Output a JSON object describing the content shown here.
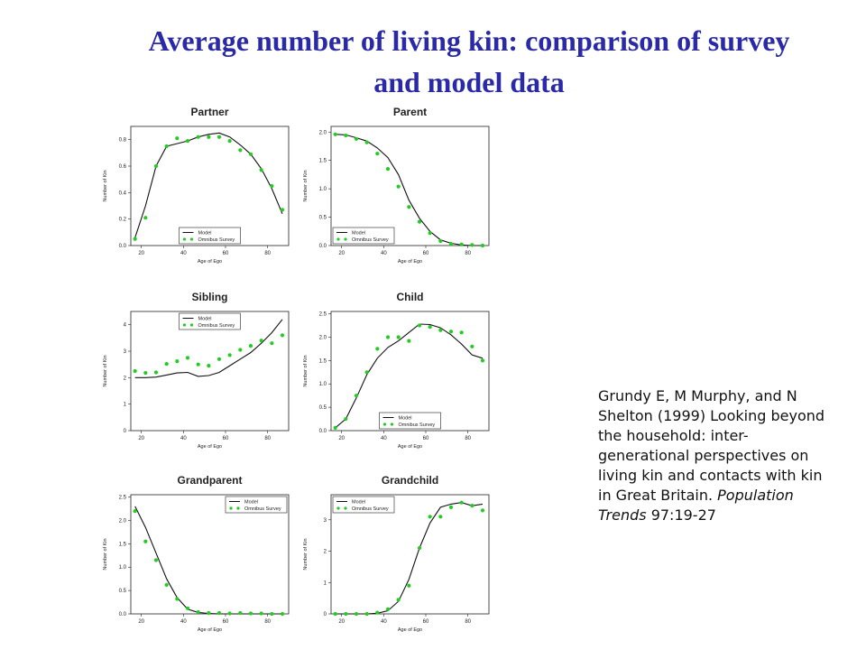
{
  "slide": {
    "title_line1": "Average number of living kin: comparison of survey",
    "title_line2": "and model data"
  },
  "citation": {
    "authors": "Grundy E, M Murphy, and N Shelton (1999)",
    "article": "Looking beyond the household: inter-generational perspectives on living kin and contacts with kin in Great Britain.",
    "journal": "Population Trends",
    "issue": "97:19-27"
  },
  "colors": {
    "title": "#2a2aa8",
    "model": "#111111",
    "survey": "#22cc22"
  },
  "chart_data": [
    {
      "type": "line",
      "title": "Partner",
      "xlabel": "Age of Ego",
      "ylabel": "Number of Kin",
      "xlim": [
        15,
        90
      ],
      "ylim": [
        0,
        0.9
      ],
      "xticks": [
        20,
        40,
        60,
        80
      ],
      "yticks": [
        0.0,
        0.2,
        0.4,
        0.6,
        0.8
      ],
      "ytick_labels": [
        "0.0",
        "0.2",
        "0.4",
        "0.6",
        "0.8"
      ],
      "legend": {
        "position": "bottom-center",
        "entries": [
          "Model",
          "Omnibus Survey"
        ]
      },
      "series": [
        {
          "name": "Model",
          "style": "line",
          "x": [
            17,
            22,
            27,
            32,
            37,
            42,
            47,
            52,
            57,
            62,
            67,
            72,
            77,
            82,
            87
          ],
          "y": [
            0.06,
            0.3,
            0.6,
            0.75,
            0.77,
            0.79,
            0.82,
            0.84,
            0.85,
            0.82,
            0.76,
            0.69,
            0.58,
            0.43,
            0.24
          ]
        },
        {
          "name": "Omnibus Survey",
          "style": "points",
          "x": [
            17,
            22,
            27,
            32,
            37,
            42,
            47,
            52,
            57,
            62,
            67,
            72,
            77,
            82,
            87
          ],
          "y": [
            0.05,
            0.21,
            0.6,
            0.75,
            0.81,
            0.79,
            0.82,
            0.82,
            0.82,
            0.79,
            0.72,
            0.69,
            0.57,
            0.45,
            0.27
          ]
        }
      ]
    },
    {
      "type": "line",
      "title": "Parent",
      "xlabel": "Age of Ego",
      "ylabel": "Number of Kin",
      "xlim": [
        15,
        90
      ],
      "ylim": [
        0,
        2.1
      ],
      "xticks": [
        20,
        40,
        60,
        80
      ],
      "yticks": [
        0.0,
        0.5,
        1.0,
        1.5,
        2.0
      ],
      "ytick_labels": [
        "0.0",
        "0.5",
        "1.0",
        "1.5",
        "2.0"
      ],
      "legend": {
        "position": "bottom-left",
        "entries": [
          "Model",
          "Omnibus Survey"
        ]
      },
      "series": [
        {
          "name": "Model",
          "style": "line",
          "x": [
            17,
            22,
            27,
            32,
            37,
            42,
            47,
            52,
            57,
            62,
            67,
            72,
            77,
            82,
            87
          ],
          "y": [
            1.96,
            1.95,
            1.9,
            1.84,
            1.72,
            1.55,
            1.25,
            0.8,
            0.48,
            0.25,
            0.1,
            0.04,
            0.01,
            0.0,
            0.0
          ]
        },
        {
          "name": "Omnibus Survey",
          "style": "points",
          "x": [
            17,
            22,
            27,
            32,
            37,
            42,
            47,
            52,
            57,
            62,
            67,
            72,
            77,
            82,
            87
          ],
          "y": [
            1.96,
            1.94,
            1.88,
            1.82,
            1.62,
            1.35,
            1.04,
            0.68,
            0.42,
            0.22,
            0.08,
            0.03,
            0.02,
            0.01,
            0.0
          ]
        }
      ]
    },
    {
      "type": "line",
      "title": "Sibling",
      "xlabel": "Age of Ego",
      "ylabel": "Number of Kin",
      "xlim": [
        15,
        90
      ],
      "ylim": [
        0,
        4.5
      ],
      "xticks": [
        20,
        40,
        60,
        80
      ],
      "yticks": [
        0,
        1,
        2,
        3,
        4
      ],
      "ytick_labels": [
        "0",
        "1",
        "2",
        "3",
        "4"
      ],
      "legend": {
        "position": "top-center",
        "entries": [
          "Model",
          "Omnibus Survey"
        ]
      },
      "series": [
        {
          "name": "Model",
          "style": "line",
          "x": [
            17,
            22,
            27,
            32,
            37,
            42,
            47,
            52,
            57,
            62,
            67,
            72,
            77,
            82,
            87
          ],
          "y": [
            2.0,
            2.0,
            2.02,
            2.1,
            2.18,
            2.2,
            2.05,
            2.08,
            2.2,
            2.45,
            2.7,
            2.95,
            3.3,
            3.7,
            4.2
          ]
        },
        {
          "name": "Omnibus Survey",
          "style": "points",
          "x": [
            17,
            22,
            27,
            32,
            37,
            42,
            47,
            52,
            57,
            62,
            67,
            72,
            77,
            82,
            87
          ],
          "y": [
            2.25,
            2.18,
            2.2,
            2.52,
            2.62,
            2.75,
            2.5,
            2.45,
            2.7,
            2.85,
            3.05,
            3.2,
            3.4,
            3.3,
            3.6
          ]
        }
      ]
    },
    {
      "type": "line",
      "title": "Child",
      "xlabel": "Age of Ego",
      "ylabel": "Number of Kin",
      "xlim": [
        15,
        90
      ],
      "ylim": [
        0,
        2.55
      ],
      "xticks": [
        20,
        40,
        60,
        80
      ],
      "yticks": [
        0.0,
        0.5,
        1.0,
        1.5,
        2.0,
        2.5
      ],
      "ytick_labels": [
        "0.0",
        "0.5",
        "1.0",
        "1.5",
        "2.0",
        "2.5"
      ],
      "legend": {
        "position": "bottom-center",
        "entries": [
          "Model",
          "Omnibus Survey"
        ]
      },
      "series": [
        {
          "name": "Model",
          "style": "line",
          "x": [
            17,
            22,
            27,
            32,
            37,
            42,
            47,
            52,
            57,
            62,
            67,
            72,
            77,
            82,
            87
          ],
          "y": [
            0.06,
            0.25,
            0.7,
            1.2,
            1.55,
            1.78,
            1.92,
            2.1,
            2.28,
            2.27,
            2.2,
            2.05,
            1.85,
            1.62,
            1.55
          ]
        },
        {
          "name": "Omnibus Survey",
          "style": "points",
          "x": [
            17,
            22,
            27,
            32,
            37,
            42,
            47,
            52,
            57,
            62,
            67,
            72,
            77,
            82,
            87
          ],
          "y": [
            0.06,
            0.25,
            0.75,
            1.25,
            1.75,
            2.0,
            2.0,
            1.92,
            2.25,
            2.22,
            2.15,
            2.12,
            2.1,
            1.8,
            1.5
          ]
        }
      ]
    },
    {
      "type": "line",
      "title": "Grandparent",
      "xlabel": "Age of Ego",
      "ylabel": "Number of Kin",
      "xlim": [
        15,
        90
      ],
      "ylim": [
        0,
        2.55
      ],
      "xticks": [
        20,
        40,
        60,
        80
      ],
      "yticks": [
        0.0,
        0.5,
        1.0,
        1.5,
        2.0,
        2.5
      ],
      "ytick_labels": [
        "0.0",
        "0.5",
        "1.0",
        "1.5",
        "2.0",
        "2.5"
      ],
      "legend": {
        "position": "top-right",
        "entries": [
          "Model",
          "Omnibus Survey"
        ]
      },
      "series": [
        {
          "name": "Model",
          "style": "line",
          "x": [
            17,
            22,
            27,
            32,
            37,
            42,
            47,
            52,
            57,
            62,
            67,
            72,
            77,
            82,
            87
          ],
          "y": [
            2.3,
            1.85,
            1.3,
            0.75,
            0.35,
            0.1,
            0.03,
            0.01,
            0.0,
            0.0,
            0.0,
            0.0,
            0.0,
            0.0,
            0.0
          ]
        },
        {
          "name": "Omnibus Survey",
          "style": "points",
          "x": [
            17,
            22,
            27,
            32,
            37,
            42,
            47,
            52,
            57,
            62,
            67,
            72,
            77,
            82,
            87
          ],
          "y": [
            2.2,
            1.55,
            1.15,
            0.62,
            0.32,
            0.12,
            0.04,
            0.02,
            0.02,
            0.01,
            0.02,
            0.01,
            0.01,
            0.0,
            0.0
          ]
        }
      ]
    },
    {
      "type": "line",
      "title": "Grandchild",
      "xlabel": "Age of Ego",
      "ylabel": "Number of Kin",
      "xlim": [
        15,
        90
      ],
      "ylim": [
        0,
        3.8
      ],
      "xticks": [
        20,
        40,
        60,
        80
      ],
      "yticks": [
        0,
        1,
        2,
        3
      ],
      "ytick_labels": [
        "0",
        "1",
        "2",
        "3"
      ],
      "legend": {
        "position": "top-left",
        "entries": [
          "Model",
          "Omnibus Survey"
        ]
      },
      "series": [
        {
          "name": "Model",
          "style": "line",
          "x": [
            17,
            22,
            27,
            32,
            37,
            42,
            47,
            52,
            57,
            62,
            67,
            72,
            77,
            82,
            87
          ],
          "y": [
            0.0,
            0.0,
            0.0,
            0.0,
            0.02,
            0.1,
            0.4,
            1.1,
            2.1,
            2.9,
            3.4,
            3.5,
            3.55,
            3.45,
            3.5
          ]
        },
        {
          "name": "Omnibus Survey",
          "style": "points",
          "x": [
            17,
            22,
            27,
            32,
            37,
            42,
            47,
            52,
            57,
            62,
            67,
            72,
            77,
            82,
            87
          ],
          "y": [
            0.0,
            0.0,
            0.0,
            0.0,
            0.04,
            0.15,
            0.45,
            0.9,
            2.1,
            3.1,
            3.1,
            3.4,
            3.55,
            3.45,
            3.3
          ]
        }
      ]
    }
  ]
}
